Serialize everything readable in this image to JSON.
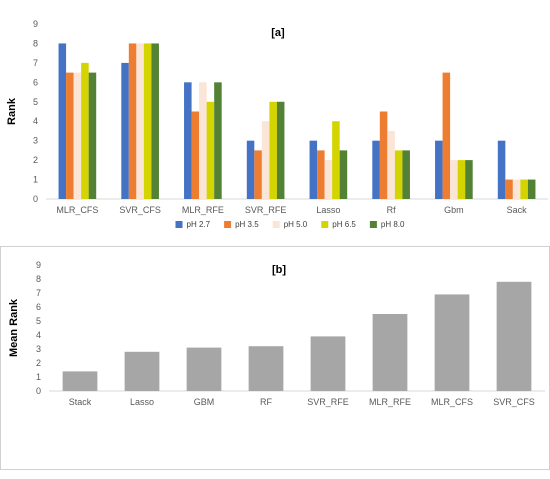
{
  "chart_data": [
    {
      "type": "bar",
      "title": "[a]",
      "xlabel": "",
      "ylabel": "Rank",
      "ylim": [
        0,
        9
      ],
      "yticks": [
        "0",
        "1",
        "2",
        "3",
        "4",
        "5",
        "6",
        "7",
        "8",
        "9"
      ],
      "categories": [
        "MLR_CFS",
        "SVR_CFS",
        "MLR_RFE",
        "SVR_RFE",
        "Lasso",
        "Rf",
        "Gbm",
        "Sack"
      ],
      "series": [
        {
          "name": "pH 2.7",
          "color": "#4472C4",
          "values": [
            8,
            7,
            6,
            3,
            3,
            3,
            3,
            3
          ]
        },
        {
          "name": "pH 3.5",
          "color": "#ED7D31",
          "values": [
            6.5,
            8,
            4.5,
            2.5,
            2.5,
            4.5,
            6.5,
            1
          ]
        },
        {
          "name": "pH 5.0",
          "color": "#FBE5D6",
          "values": [
            6.5,
            8,
            6,
            4,
            2,
            3.5,
            2,
            1
          ]
        },
        {
          "name": "pH 6.5",
          "color": "#D4D400",
          "values": [
            7,
            8,
            5,
            5,
            4,
            2.5,
            2,
            1
          ]
        },
        {
          "name": "pH 8.0",
          "color": "#548235",
          "values": [
            6.5,
            8,
            6,
            5,
            2.5,
            2.5,
            2,
            1
          ]
        }
      ],
      "legend_position": "bottom",
      "grid": false
    },
    {
      "type": "bar",
      "title": "[b]",
      "xlabel": "",
      "ylabel": "Mean Rank",
      "ylim": [
        0,
        9
      ],
      "yticks": [
        "0",
        "1",
        "2",
        "3",
        "4",
        "5",
        "6",
        "7",
        "8",
        "9"
      ],
      "categories": [
        "Stack",
        "Lasso",
        "GBM",
        "RF",
        "SVR_RFE",
        "MLR_RFE",
        "MLR_CFS",
        "SVR_CFS"
      ],
      "series": [
        {
          "color": "#A6A6A6",
          "values": [
            1.4,
            2.8,
            3.1,
            3.2,
            3.9,
            5.5,
            6.9,
            7.8
          ]
        }
      ],
      "grid": false
    }
  ]
}
